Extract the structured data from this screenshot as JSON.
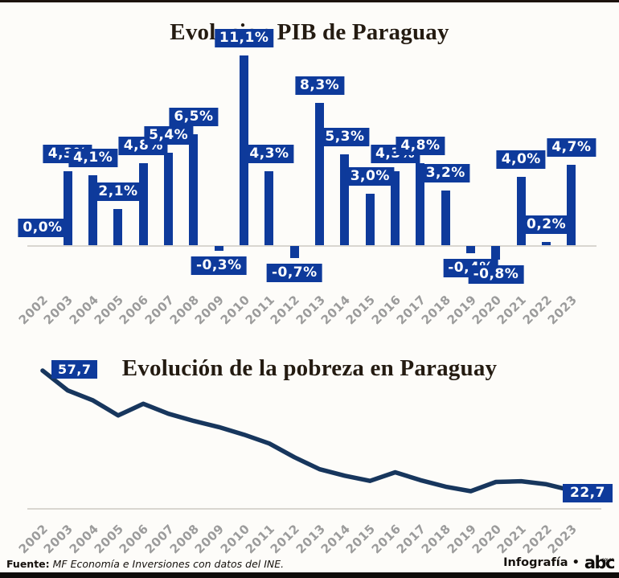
{
  "colors": {
    "bar_blue": "#0e3a9b",
    "line_navy": "#17365d",
    "axis_gray": "#d9d6d0",
    "year_gray": "#9b9b9b",
    "title_ink": "#241b11"
  },
  "chart_data": [
    {
      "type": "bar",
      "title": "Evolucion PIB de Paraguay",
      "unit": "%",
      "categories": [
        "2002",
        "2003",
        "2004",
        "2005",
        "2006",
        "2007",
        "2008",
        "2009",
        "2010",
        "2011",
        "2012",
        "2013",
        "2014",
        "2015",
        "2016",
        "2017",
        "2018",
        "2019",
        "2020",
        "2021",
        "2022",
        "2023"
      ],
      "values": [
        0.0,
        4.3,
        4.1,
        2.1,
        4.8,
        5.4,
        6.5,
        -0.3,
        11.1,
        4.3,
        -0.7,
        8.3,
        5.3,
        3.0,
        4.3,
        4.8,
        3.2,
        -0.4,
        -0.8,
        4.0,
        0.2,
        4.7
      ],
      "labels": [
        "0,0%",
        "4,3%",
        "4,1%",
        "2,1%",
        "4,8%",
        "5,4%",
        "6,5%",
        "-0,3%",
        "11,1%",
        "4,3%",
        "-0,7%",
        "8,3%",
        "5,3%",
        "3,0%",
        "4,3%",
        "4,8%",
        "3,2%",
        "-0,4%",
        "-0,8%",
        "4,0%",
        "0,2%",
        "4,7%"
      ],
      "ylim": [
        -2,
        12
      ],
      "grid": false,
      "bar_color": "#0e3a9b"
    },
    {
      "type": "line",
      "title": "Evolución de la pobreza en Paraguay",
      "categories": [
        "2002",
        "2003",
        "2004",
        "2005",
        "2006",
        "2007",
        "2008",
        "2009",
        "2010",
        "2011",
        "2012",
        "2013",
        "2014",
        "2015",
        "2016",
        "2017",
        "2018",
        "2019",
        "2020",
        "2021",
        "2022",
        "2023"
      ],
      "values": [
        57.7,
        51.9,
        49.0,
        44.6,
        48.0,
        45.1,
        43.0,
        41.2,
        39.0,
        36.4,
        32.4,
        28.9,
        27.0,
        25.5,
        28.0,
        25.7,
        23.8,
        22.5,
        25.2,
        25.4,
        24.5,
        22.7
      ],
      "first_label": "57,7",
      "last_label": "22,7",
      "ylim": [
        20,
        60
      ],
      "grid": false,
      "line_color": "#17365d"
    }
  ],
  "footer": {
    "source_label": "Fuente:",
    "source_text": "MF Economía e Inversiones con datos del INE.",
    "credit": "Infografía •",
    "logo": "abc",
    "logo_small": "COLOR"
  }
}
